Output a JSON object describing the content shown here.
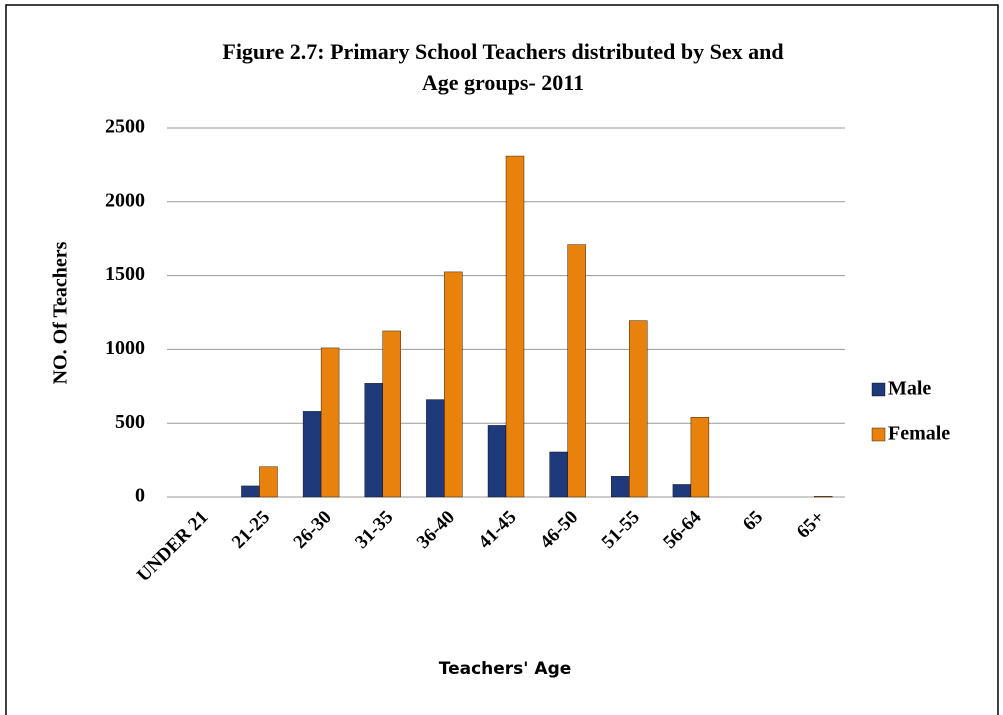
{
  "chart_data": {
    "type": "bar",
    "title": [
      "Figure 2.7: Primary School Teachers distributed by Sex and",
      "Age groups- 2011"
    ],
    "x_label": "Teachers' Age",
    "y_label": "NO. Of Teachers",
    "categories": [
      "UNDER 21",
      "21-25",
      "26-30",
      "31-35",
      "36-40",
      "41-45",
      "46-50",
      "51-55",
      "56-64",
      "65",
      "65+"
    ],
    "series": [
      {
        "name": "Male",
        "color": "#1f3a7a",
        "values": [
          0,
          75,
          580,
          770,
          660,
          485,
          305,
          140,
          85,
          0,
          0
        ]
      },
      {
        "name": "Female",
        "color": "#e8820c",
        "values": [
          0,
          205,
          1010,
          1125,
          1525,
          2310,
          1710,
          1195,
          540,
          0,
          5
        ]
      }
    ],
    "ylim": [
      0,
      2500
    ],
    "yticks": [
      0,
      500,
      1000,
      1500,
      2000,
      2500
    ],
    "grid": true,
    "legend": "right"
  }
}
